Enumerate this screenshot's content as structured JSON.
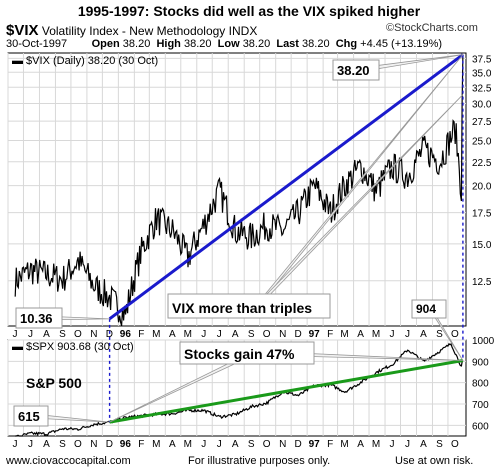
{
  "title": "1995-1997:  Stocks did well as the VIX spiked higher",
  "header": {
    "symbol": "$VIX",
    "description": "Volatility Index - New Methodology",
    "exchange": "INDX",
    "date": "30-Oct-1997",
    "open_label": "Open",
    "open": "38.20",
    "high_label": "High",
    "high": "38.20",
    "low_label": "Low",
    "low": "38.20",
    "last_label": "Last",
    "last": "38.20",
    "chg_label": "Chg",
    "chg": "+4.45 (+13.19%)",
    "watermark": "©StockCharts.com"
  },
  "footer": {
    "site": "www.ciovaccocapital.com",
    "disclaimer": "For illustrative purposes only.",
    "risk": "Use at own risk."
  },
  "colors": {
    "trend_blue": "#1a1acc",
    "trend_green": "#1a9a1a",
    "vline_blue": "#1a1acc",
    "grid": "#d8d8d8",
    "price": "#000000"
  },
  "chart_data": [
    {
      "type": "line",
      "panel": "vix",
      "legend": "$VIX (Daily) 38.20 (30 Oct)",
      "y_scale": "log",
      "ylim": [
        10,
        38.5
      ],
      "y_ticks": [
        "37.5",
        "35.0",
        "32.5",
        "30.0",
        "27.5",
        "25.0",
        "22.5",
        "20.0",
        "17.5",
        "15.0",
        "12.5"
      ],
      "x_labels": [
        "J",
        "J",
        "A",
        "S",
        "O",
        "N",
        "D",
        "96",
        "F",
        "M",
        "A",
        "M",
        "J",
        "J",
        "A",
        "S",
        "O",
        "N",
        "D",
        "97",
        "F",
        "M",
        "A",
        "M",
        "J",
        "J",
        "A",
        "S",
        "O"
      ],
      "series": [
        {
          "name": "$VIX",
          "x": [
            "1995-06",
            "1995-07",
            "1995-08",
            "1995-09",
            "1995-10",
            "1995-11",
            "1995-12",
            "1996-01",
            "1996-02",
            "1996-03",
            "1996-04",
            "1996-05",
            "1996-06",
            "1996-07",
            "1996-08",
            "1996-09",
            "1996-10",
            "1996-11",
            "1996-12",
            "1997-01",
            "1997-02",
            "1997-03",
            "1997-04",
            "1997-05",
            "1997-06",
            "1997-07",
            "1997-08",
            "1997-09",
            "1997-10-15",
            "1997-10-27",
            "1997-10-30"
          ],
          "y": [
            12.5,
            13.2,
            12.9,
            12.6,
            13.8,
            12.2,
            11.5,
            10.6,
            14.5,
            17.0,
            16.0,
            14.0,
            16.5,
            19.5,
            16.0,
            15.5,
            16.5,
            16.0,
            17.5,
            20.0,
            17.5,
            20.0,
            22.0,
            19.5,
            22.0,
            21.0,
            24.0,
            22.5,
            26.5,
            19.5,
            38.2
          ]
        },
        {
          "name": "trend",
          "x": [
            "1995-12",
            "1997-10-30"
          ],
          "y": [
            10.36,
            38.2
          ]
        }
      ],
      "annotations": [
        {
          "text": "38.20"
        },
        {
          "text": "10.36"
        },
        {
          "text": "VIX more than triples"
        },
        {
          "text": "904"
        }
      ]
    },
    {
      "type": "line",
      "panel": "spx",
      "legend": "$SPX 903.68 (30 Oct)",
      "ylim": [
        550,
        1000
      ],
      "y_ticks": [
        "1000",
        "900",
        "800",
        "700",
        "600"
      ],
      "x_labels": [
        "J",
        "J",
        "A",
        "S",
        "O",
        "N",
        "D",
        "96",
        "F",
        "M",
        "A",
        "M",
        "J",
        "J",
        "A",
        "S",
        "O",
        "N",
        "D",
        "97",
        "F",
        "M",
        "A",
        "M",
        "J",
        "J",
        "A",
        "S",
        "O"
      ],
      "series": [
        {
          "name": "$SPX",
          "x": [
            "1995-06",
            "1995-07",
            "1995-08",
            "1995-09",
            "1995-10",
            "1995-11",
            "1995-12",
            "1996-01",
            "1996-02",
            "1996-03",
            "1996-04",
            "1996-05",
            "1996-06",
            "1996-07",
            "1996-08",
            "1996-09",
            "1996-10",
            "1996-11",
            "1996-12",
            "1997-01",
            "1997-02",
            "1997-03",
            "1997-04",
            "1997-05",
            "1997-06",
            "1997-07",
            "1997-08",
            "1997-09",
            "1997-10-07",
            "1997-10-27",
            "1997-10-30"
          ],
          "y": [
            545,
            562,
            560,
            584,
            582,
            605,
            615,
            636,
            645,
            652,
            655,
            670,
            670,
            640,
            651,
            687,
            705,
            757,
            740,
            786,
            790,
            757,
            801,
            848,
            885,
            954,
            900,
            947,
            983,
            876,
            904
          ]
        },
        {
          "name": "trend",
          "x": [
            "1995-12",
            "1997-10-30"
          ],
          "y": [
            615,
            904
          ]
        }
      ],
      "annotations": [
        {
          "text": "Stocks gain 47%"
        },
        {
          "text": "S&P 500"
        },
        {
          "text": "615"
        }
      ]
    }
  ]
}
